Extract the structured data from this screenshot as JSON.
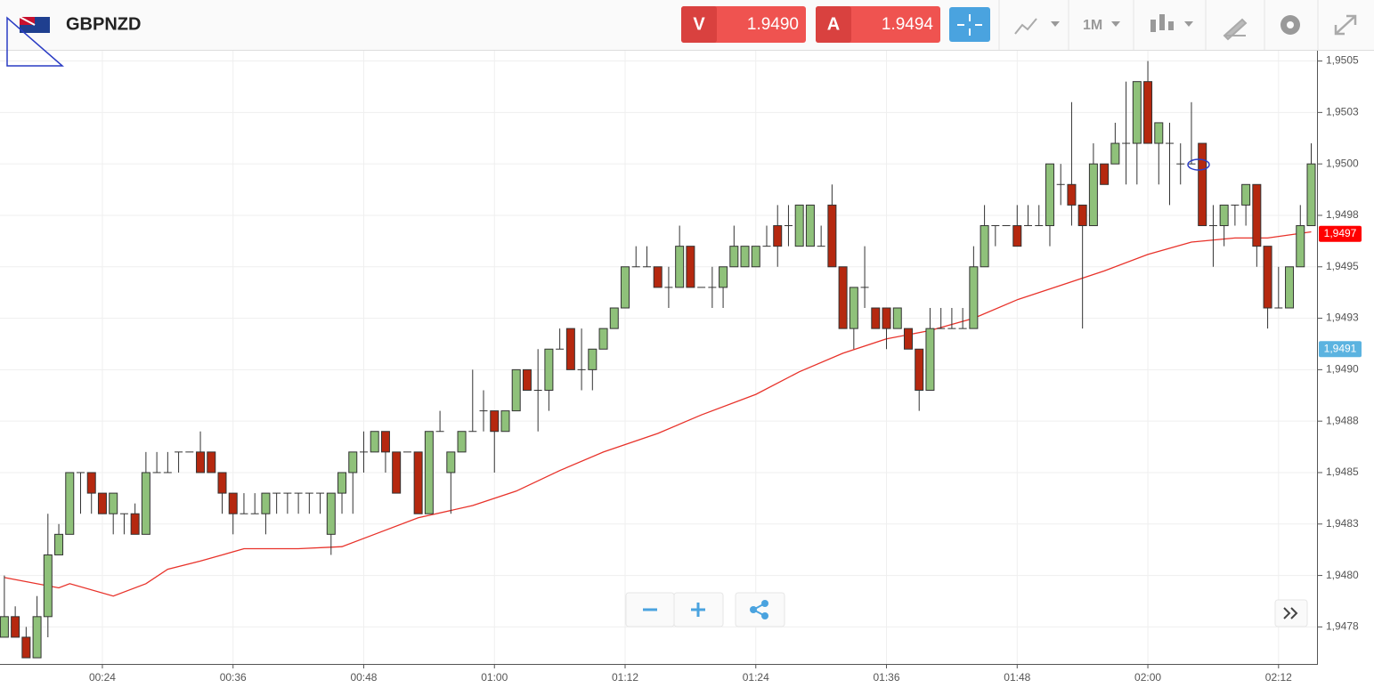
{
  "toolbar": {
    "symbol": "GBPNZD",
    "bid": {
      "label": "V",
      "price": "1.9490"
    },
    "ask": {
      "label": "A",
      "price": "1.9494"
    },
    "timeframe": "1M"
  },
  "chart_data": {
    "type": "candlestick",
    "up_color": "#8fc17a",
    "down_color": "#b5280f",
    "xlim": [
      14.6,
      135.45
    ],
    "ylim": [
      1.94757,
      1.95055
    ],
    "grid": true,
    "xticks": [
      {
        "value": 24,
        "label": "00:24"
      },
      {
        "value": 36,
        "label": "00:36"
      },
      {
        "value": 48,
        "label": "00:48"
      },
      {
        "value": 60,
        "label": "01:00"
      },
      {
        "value": 72,
        "label": "01:12"
      },
      {
        "value": 84,
        "label": "01:24"
      },
      {
        "value": 96,
        "label": "01:36"
      },
      {
        "value": 108,
        "label": "01:48"
      },
      {
        "value": 120,
        "label": "02:00"
      },
      {
        "value": 132,
        "label": "02:12"
      }
    ],
    "yticks": [
      {
        "value": 1.9505,
        "label": "1,9505"
      },
      {
        "value": 1.95025,
        "label": "1,9503"
      },
      {
        "value": 1.95,
        "label": "1,9500"
      },
      {
        "value": 1.94975,
        "label": "1,9498"
      },
      {
        "value": 1.9495,
        "label": "1,9495"
      },
      {
        "value": 1.94925,
        "label": "1,9493"
      },
      {
        "value": 1.949,
        "label": "1,9490"
      },
      {
        "value": 1.94875,
        "label": "1,9488"
      },
      {
        "value": 1.9485,
        "label": "1,9485"
      },
      {
        "value": 1.94825,
        "label": "1,9483"
      },
      {
        "value": 1.948,
        "label": "1,9480"
      },
      {
        "value": 1.94775,
        "label": "1,9478"
      }
    ],
    "x": [
      15,
      16,
      17,
      18,
      19,
      20,
      21,
      22,
      23,
      24,
      25,
      26,
      27,
      28,
      29,
      30,
      31,
      32,
      33,
      34,
      35,
      36,
      37,
      38,
      39,
      40,
      41,
      42,
      43,
      44,
      45,
      46,
      47,
      48,
      49,
      50,
      51,
      52,
      53,
      54,
      55,
      56,
      57,
      58,
      59,
      60,
      61,
      62,
      63,
      64,
      65,
      66,
      67,
      68,
      69,
      70,
      71,
      72,
      73,
      74,
      75,
      76,
      77,
      78,
      79,
      80,
      81,
      82,
      83,
      84,
      85,
      86,
      87,
      88,
      89,
      90,
      91,
      92,
      93,
      94,
      95,
      96,
      97,
      98,
      99,
      100,
      101,
      102,
      103,
      104,
      105,
      106,
      107,
      108,
      109,
      110,
      111,
      112,
      113,
      114,
      115,
      116,
      117,
      118,
      119,
      120,
      121,
      122,
      123,
      124,
      125,
      126,
      127,
      128,
      129,
      130,
      131,
      132,
      133,
      134,
      135
    ],
    "open": [
      1.9477,
      1.9478,
      1.9477,
      1.9476,
      1.9478,
      1.9481,
      1.9482,
      1.9485,
      1.9485,
      1.9484,
      1.9483,
      1.9483,
      1.9483,
      1.9482,
      1.9485,
      1.9485,
      1.9486,
      1.9486,
      1.9486,
      1.9486,
      1.9485,
      1.9484,
      1.9483,
      1.9483,
      1.9483,
      1.9484,
      1.9484,
      1.9484,
      1.9484,
      1.9484,
      1.9482,
      1.9484,
      1.9485,
      1.9486,
      1.9486,
      1.9487,
      1.9486,
      1.9486,
      1.9486,
      1.9483,
      1.9487,
      1.9485,
      1.9486,
      1.9487,
      1.9488,
      1.9488,
      1.9487,
      1.9488,
      1.949,
      1.9489,
      1.9489,
      1.9491,
      1.9492,
      1.949,
      1.949,
      1.9491,
      1.9492,
      1.9493,
      1.9495,
      1.9495,
      1.9495,
      1.9494,
      1.9494,
      1.9496,
      1.9494,
      1.9494,
      1.9494,
      1.9495,
      1.9495,
      1.9495,
      1.9496,
      1.9497,
      1.9497,
      1.9496,
      1.9496,
      1.9496,
      1.9498,
      1.9495,
      1.9492,
      1.9494,
      1.9493,
      1.9493,
      1.9492,
      1.9492,
      1.9491,
      1.9489,
      1.9492,
      1.9492,
      1.9492,
      1.9492,
      1.9495,
      1.9497,
      1.9497,
      1.9497,
      1.9497,
      1.9497,
      1.9497,
      1.9499,
      1.9499,
      1.9498,
      1.9497,
      1.95,
      1.95,
      1.9501,
      1.9501,
      1.9504,
      1.9501,
      1.9501,
      1.95,
      1.95,
      1.9501,
      1.9497,
      1.9497,
      1.9498,
      1.9498,
      1.9499,
      1.9496,
      1.9493,
      1.9493,
      1.9495,
      1.9497
    ],
    "high": [
      1.948,
      1.94785,
      1.94775,
      1.9479,
      1.9483,
      1.94825,
      1.9485,
      1.9485,
      1.9485,
      1.9484,
      1.9484,
      1.9483,
      1.94835,
      1.9486,
      1.9486,
      1.9486,
      1.9486,
      1.9486,
      1.9487,
      1.9486,
      1.9485,
      1.9484,
      1.9484,
      1.9484,
      1.9484,
      1.9484,
      1.9484,
      1.9484,
      1.9484,
      1.9484,
      1.9484,
      1.9485,
      1.9486,
      1.9487,
      1.9487,
      1.9487,
      1.9486,
      1.9486,
      1.9486,
      1.9487,
      1.9488,
      1.9486,
      1.9487,
      1.949,
      1.9489,
      1.9488,
      1.9488,
      1.949,
      1.949,
      1.9491,
      1.9491,
      1.9492,
      1.9492,
      1.9492,
      1.9491,
      1.9492,
      1.9493,
      1.9495,
      1.9496,
      1.9496,
      1.9495,
      1.9495,
      1.9497,
      1.9496,
      1.9494,
      1.9495,
      1.9495,
      1.9497,
      1.9496,
      1.9496,
      1.9497,
      1.9498,
      1.9498,
      1.9498,
      1.9498,
      1.9497,
      1.9499,
      1.9495,
      1.9494,
      1.9496,
      1.9493,
      1.9493,
      1.9493,
      1.9492,
      1.9491,
      1.9493,
      1.9493,
      1.9493,
      1.9493,
      1.9496,
      1.9498,
      1.9497,
      1.9497,
      1.9498,
      1.9498,
      1.9498,
      1.95,
      1.95,
      1.9503,
      1.9498,
      1.9501,
      1.95,
      1.9502,
      1.9504,
      1.9504,
      1.9505,
      1.9502,
      1.9502,
      1.9501,
      1.9503,
      1.9501,
      1.9498,
      1.9498,
      1.9498,
      1.9499,
      1.9499,
      1.9496,
      1.9495,
      1.9495,
      1.9498,
      1.9501
    ],
    "low": [
      1.9477,
      1.9477,
      1.9476,
      1.9476,
      1.9477,
      1.9481,
      1.9482,
      1.9483,
      1.9483,
      1.9483,
      1.9482,
      1.9482,
      1.9482,
      1.9482,
      1.9485,
      1.9485,
      1.9485,
      1.9486,
      1.9485,
      1.9485,
      1.9483,
      1.9482,
      1.9483,
      1.9483,
      1.9482,
      1.9483,
      1.9483,
      1.9483,
      1.9483,
      1.9483,
      1.9481,
      1.9483,
      1.9483,
      1.9485,
      1.9486,
      1.9485,
      1.9484,
      1.9486,
      1.9483,
      1.9483,
      1.9487,
      1.9483,
      1.9486,
      1.9487,
      1.9487,
      1.9485,
      1.9487,
      1.9488,
      1.9489,
      1.9487,
      1.9488,
      1.9491,
      1.949,
      1.9489,
      1.9489,
      1.9491,
      1.9492,
      1.9493,
      1.9495,
      1.9495,
      1.9494,
      1.9493,
      1.9494,
      1.9494,
      1.9494,
      1.9493,
      1.9493,
      1.9495,
      1.9495,
      1.9495,
      1.9496,
      1.9495,
      1.9496,
      1.9496,
      1.9496,
      1.9496,
      1.9495,
      1.9492,
      1.9491,
      1.9493,
      1.9492,
      1.9491,
      1.9492,
      1.9491,
      1.9488,
      1.9489,
      1.9492,
      1.9492,
      1.9492,
      1.9492,
      1.9495,
      1.9496,
      1.9497,
      1.9496,
      1.9497,
      1.9497,
      1.9496,
      1.9498,
      1.9497,
      1.9492,
      1.9497,
      1.9499,
      1.95,
      1.9499,
      1.9499,
      1.9501,
      1.9499,
      1.9498,
      1.9499,
      1.95,
      1.9497,
      1.9495,
      1.9496,
      1.9497,
      1.9497,
      1.9495,
      1.9492,
      1.9493,
      1.9493,
      1.9495,
      1.9497
    ],
    "close": [
      1.9478,
      1.9477,
      1.9476,
      1.9478,
      1.9481,
      1.9482,
      1.9485,
      1.9485,
      1.9484,
      1.9483,
      1.9484,
      1.9483,
      1.9482,
      1.9485,
      1.9485,
      1.9485,
      1.9486,
      1.9486,
      1.9485,
      1.9485,
      1.9484,
      1.9483,
      1.9483,
      1.9483,
      1.9484,
      1.9484,
      1.9484,
      1.9484,
      1.9484,
      1.9484,
      1.9484,
      1.9485,
      1.9486,
      1.9486,
      1.9487,
      1.9486,
      1.9484,
      1.9486,
      1.9483,
      1.9487,
      1.9487,
      1.9486,
      1.9487,
      1.9487,
      1.9488,
      1.9487,
      1.9488,
      1.949,
      1.9489,
      1.9489,
      1.9491,
      1.9491,
      1.949,
      1.949,
      1.9491,
      1.9492,
      1.9493,
      1.9495,
      1.9495,
      1.9495,
      1.9494,
      1.9494,
      1.9496,
      1.9494,
      1.9494,
      1.9494,
      1.9495,
      1.9496,
      1.9496,
      1.9496,
      1.9496,
      1.9496,
      1.9497,
      1.9498,
      1.9498,
      1.9496,
      1.9495,
      1.9492,
      1.9494,
      1.9494,
      1.9492,
      1.9492,
      1.9493,
      1.9491,
      1.9489,
      1.9492,
      1.9492,
      1.9492,
      1.9492,
      1.9495,
      1.9497,
      1.9497,
      1.9497,
      1.9496,
      1.9497,
      1.9497,
      1.95,
      1.9499,
      1.9498,
      1.9497,
      1.95,
      1.9499,
      1.9501,
      1.9501,
      1.9504,
      1.9501,
      1.9502,
      1.9501,
      1.95,
      1.95,
      1.9497,
      1.9497,
      1.9498,
      1.9498,
      1.9499,
      1.9496,
      1.9493,
      1.9493,
      1.9495,
      1.9497,
      1.95
    ],
    "moving_average": {
      "color": "#e8322a",
      "x": [
        15,
        20,
        21,
        25,
        28,
        30,
        33,
        35,
        37,
        42,
        46,
        49,
        53,
        58,
        62,
        66,
        70,
        75,
        79,
        84,
        88,
        92,
        96,
        100,
        104,
        108,
        112,
        116,
        120,
        124,
        128,
        131,
        135
      ],
      "values": [
        1.94799,
        1.94794,
        1.94796,
        1.9479,
        1.94796,
        1.94803,
        1.94807,
        1.9481,
        1.94813,
        1.94813,
        1.94814,
        1.9482,
        1.94828,
        1.94834,
        1.94841,
        1.94851,
        1.9486,
        1.94869,
        1.94878,
        1.94888,
        1.94899,
        1.94908,
        1.94915,
        1.94919,
        1.94925,
        1.94934,
        1.94941,
        1.94948,
        1.94956,
        1.94962,
        1.94964,
        1.94964,
        1.94967
      ]
    },
    "price_tags": [
      {
        "value": 1.94966,
        "label": "1,9497",
        "color": "#ff0000"
      },
      {
        "value": 1.9491,
        "label": "1,9491",
        "color": "#5bb3e0"
      }
    ]
  }
}
